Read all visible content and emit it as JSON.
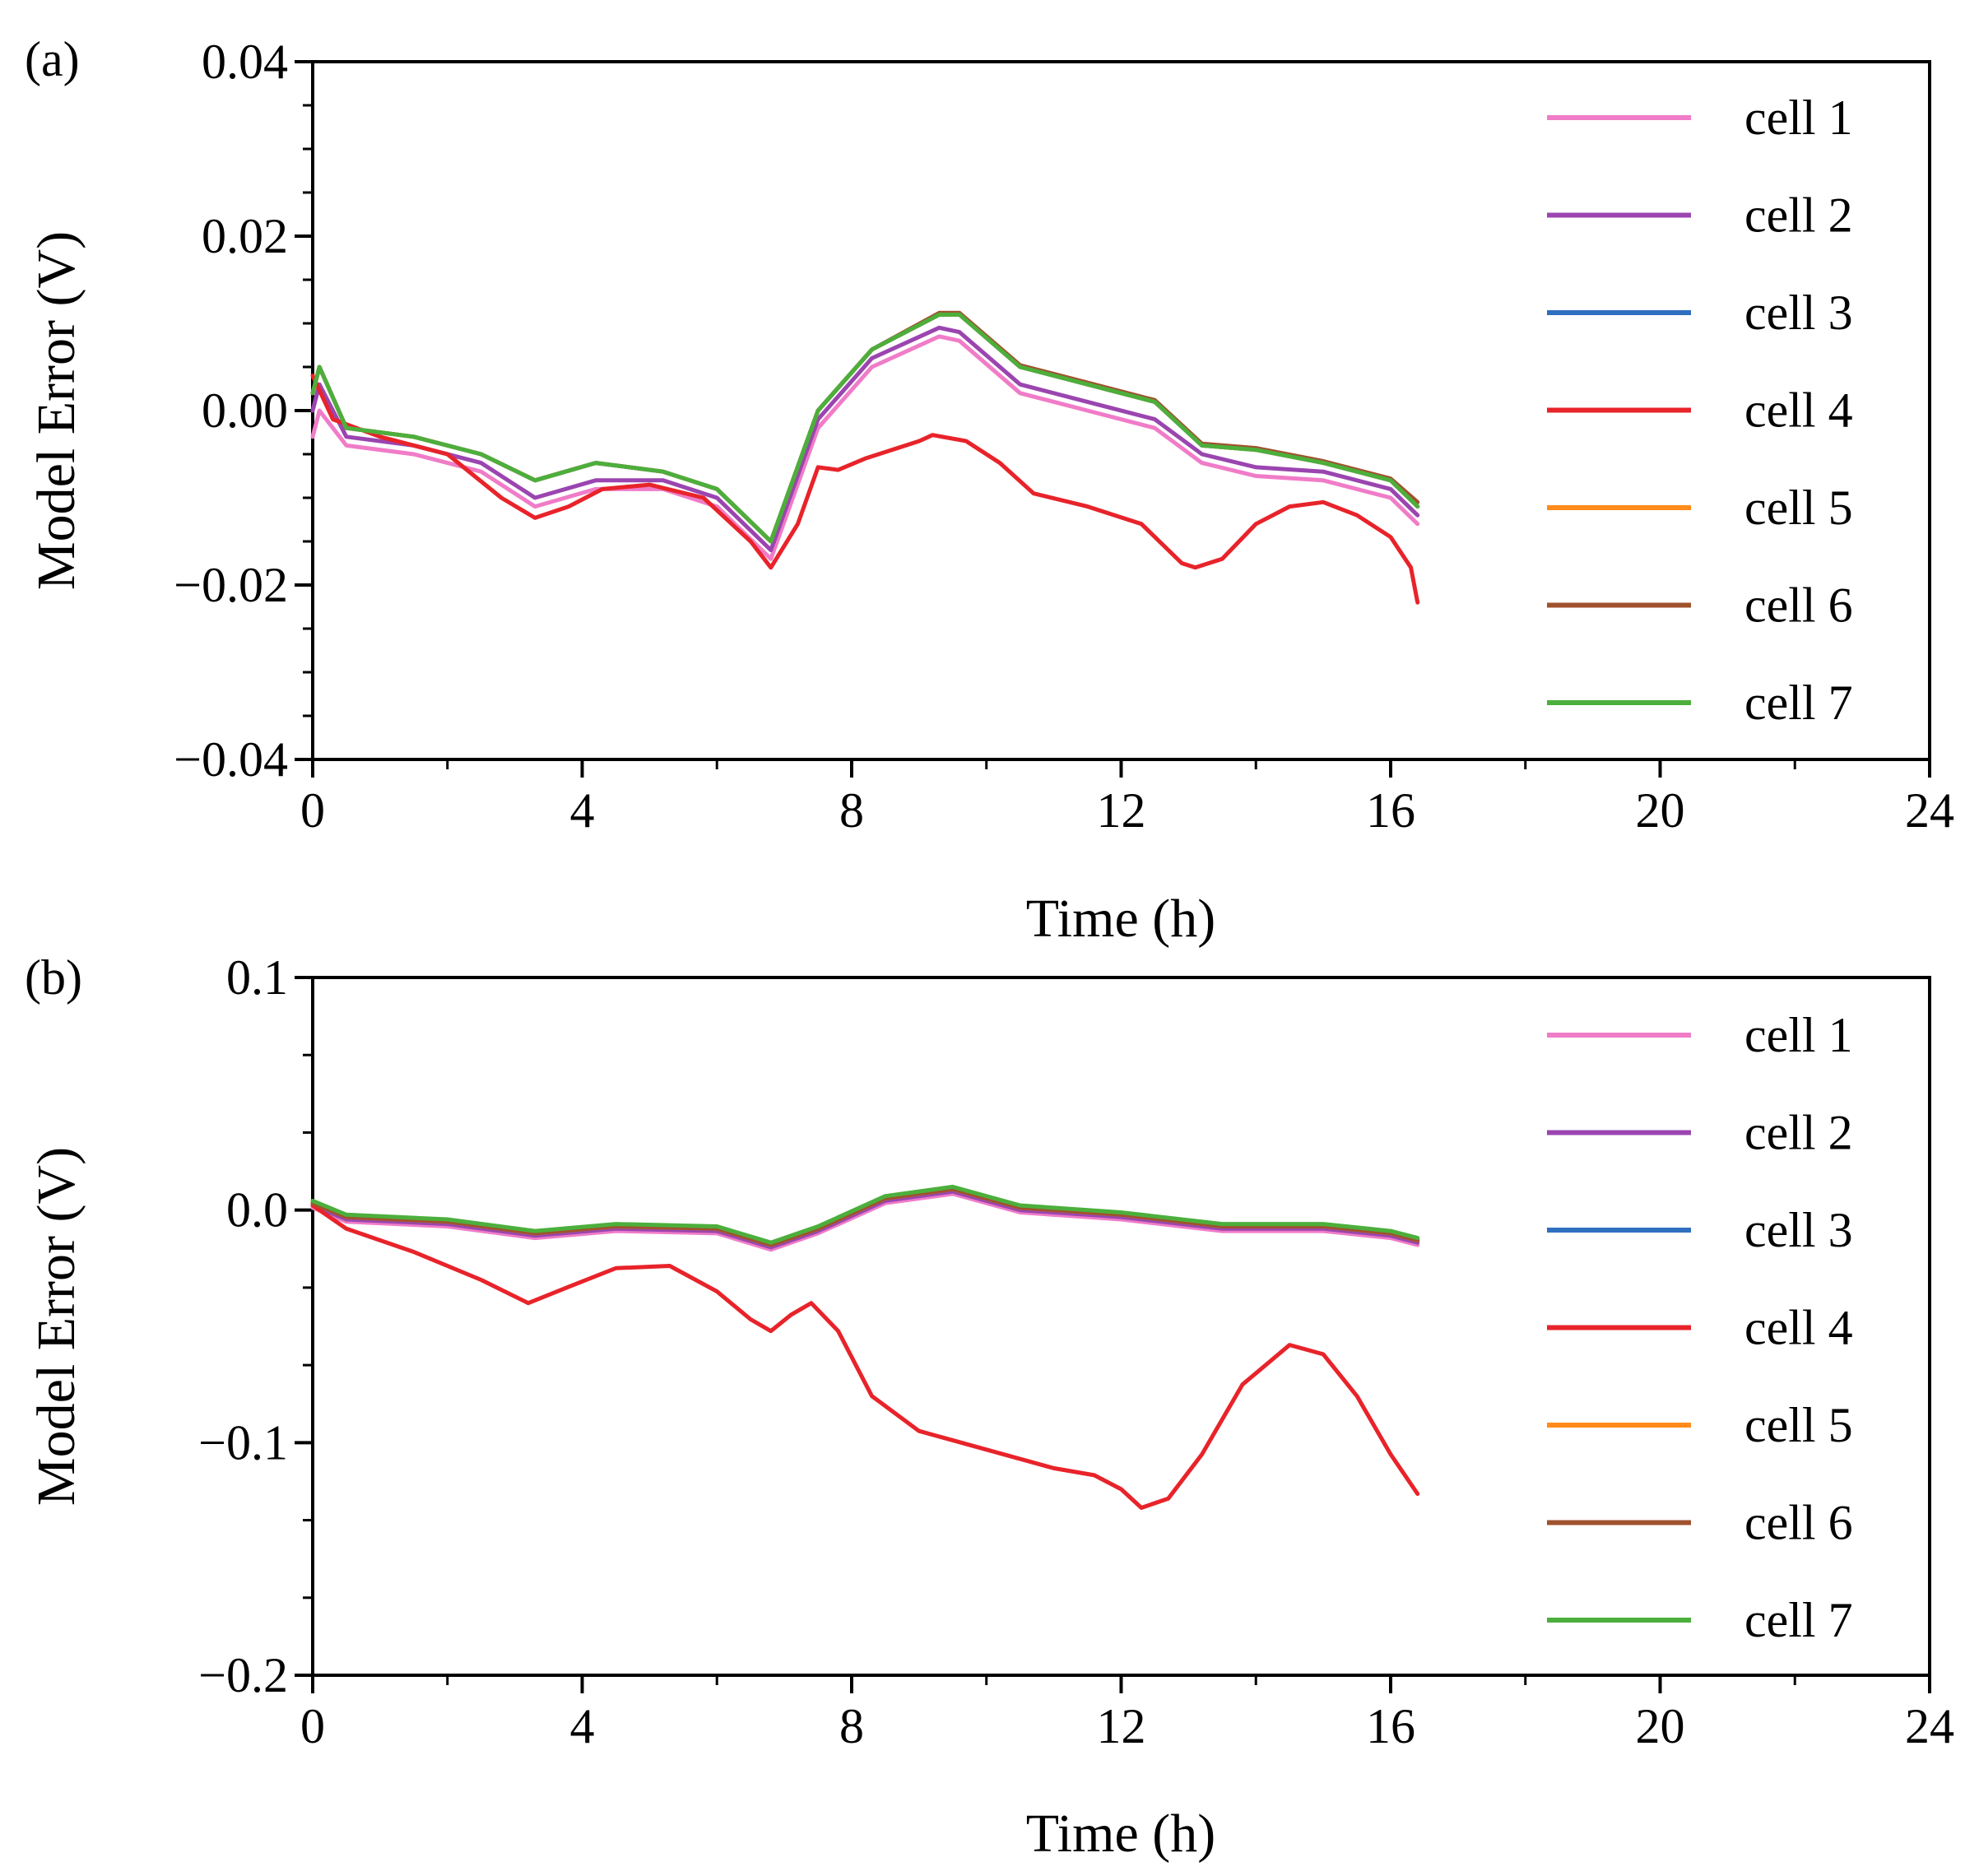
{
  "chart_data": [
    {
      "panel": "(a)",
      "type": "line",
      "xlabel": "Time (h)",
      "ylabel": "Model Error (V)",
      "xlim": [
        0,
        24
      ],
      "ylim": [
        -0.04,
        0.04
      ],
      "xticks": [
        0,
        4,
        8,
        12,
        16,
        20,
        24
      ],
      "xtick_labels": [
        "0",
        "4",
        "8",
        "12",
        "16",
        "20",
        "24"
      ],
      "yticks": [
        -0.04,
        -0.02,
        0.0,
        0.02,
        0.04
      ],
      "ytick_labels": [
        "−0.04",
        "−0.02",
        "0.00",
        "0.02",
        "0.04"
      ],
      "legend_position": "top-right",
      "series": [
        {
          "name": "cell 1",
          "color": "#f07cc8",
          "x": [
            0,
            0.1,
            0.5,
            1.5,
            2.5,
            3.3,
            4.2,
            5.2,
            6.0,
            6.8,
            7.5,
            8.3,
            9.3,
            9.6,
            10.5,
            11.5,
            12.5,
            13.2,
            14.0,
            15.0,
            16.0,
            16.4
          ],
          "y": [
            -0.003,
            0.0,
            -0.004,
            -0.005,
            -0.007,
            -0.011,
            -0.009,
            -0.009,
            -0.011,
            -0.017,
            -0.002,
            0.005,
            0.0085,
            0.008,
            0.002,
            0.0,
            -0.002,
            -0.006,
            -0.0075,
            -0.008,
            -0.01,
            -0.013
          ]
        },
        {
          "name": "cell 2",
          "color": "#9b45b0",
          "x": [
            0,
            0.1,
            0.5,
            1.5,
            2.5,
            3.3,
            4.2,
            5.2,
            6.0,
            6.8,
            7.5,
            8.3,
            9.3,
            9.6,
            10.5,
            11.5,
            12.5,
            13.2,
            14.0,
            15.0,
            16.0,
            16.4
          ],
          "y": [
            0.0,
            0.003,
            -0.003,
            -0.004,
            -0.006,
            -0.01,
            -0.008,
            -0.008,
            -0.01,
            -0.016,
            -0.001,
            0.006,
            0.0095,
            0.009,
            0.003,
            0.001,
            -0.001,
            -0.005,
            -0.0065,
            -0.007,
            -0.009,
            -0.012
          ]
        },
        {
          "name": "cell 3",
          "color": "#2f6fbf",
          "x": [
            0,
            0.1,
            0.5,
            1.5,
            2.5,
            3.3,
            4.2,
            5.2,
            6.0,
            6.8,
            7.5,
            8.3,
            9.3,
            9.6,
            10.5,
            11.5,
            12.5,
            13.2,
            14.0,
            15.0,
            16.0,
            16.4
          ],
          "y": [
            0.002,
            0.005,
            -0.002,
            -0.003,
            -0.005,
            -0.008,
            -0.006,
            -0.007,
            -0.009,
            -0.015,
            0.0,
            0.007,
            0.011,
            0.011,
            0.005,
            0.003,
            0.001,
            -0.004,
            -0.0045,
            -0.006,
            -0.008,
            -0.011
          ]
        },
        {
          "name": "cell 4",
          "color": "#e8232a",
          "x": [
            0,
            0.3,
            1.0,
            2.0,
            2.8,
            3.3,
            3.8,
            4.3,
            5.0,
            5.8,
            6.5,
            6.8,
            7.2,
            7.5,
            7.8,
            8.2,
            9.0,
            9.2,
            9.7,
            10.2,
            10.7,
            11.5,
            12.3,
            12.9,
            13.1,
            13.5,
            14.0,
            14.5,
            15.0,
            15.5,
            16.0,
            16.3,
            16.4
          ],
          "y": [
            0.004,
            -0.001,
            -0.003,
            -0.005,
            -0.01,
            -0.0123,
            -0.011,
            -0.009,
            -0.0085,
            -0.01,
            -0.015,
            -0.018,
            -0.013,
            -0.0065,
            -0.0068,
            -0.0055,
            -0.0035,
            -0.0028,
            -0.0035,
            -0.006,
            -0.0095,
            -0.011,
            -0.013,
            -0.0175,
            -0.018,
            -0.017,
            -0.013,
            -0.011,
            -0.0105,
            -0.012,
            -0.0145,
            -0.018,
            -0.022
          ]
        },
        {
          "name": "cell 5",
          "color": "#ff8c1a",
          "x": [
            0,
            0.1,
            0.5,
            1.5,
            2.5,
            3.3,
            4.2,
            5.2,
            6.0,
            6.8,
            7.5,
            8.3,
            9.3,
            9.6,
            10.5,
            11.5,
            12.5,
            13.2,
            14.0,
            15.0,
            16.0,
            16.4
          ],
          "y": [
            0.002,
            0.005,
            -0.002,
            -0.003,
            -0.005,
            -0.008,
            -0.006,
            -0.007,
            -0.009,
            -0.015,
            0.0,
            0.007,
            0.011,
            0.011,
            0.005,
            0.003,
            0.001,
            -0.004,
            -0.0045,
            -0.006,
            -0.008,
            -0.011
          ]
        },
        {
          "name": "cell 6",
          "color": "#a0522d",
          "x": [
            0,
            0.1,
            0.5,
            1.5,
            2.5,
            3.3,
            4.2,
            5.2,
            6.0,
            6.8,
            7.5,
            8.3,
            9.3,
            9.6,
            10.5,
            11.5,
            12.5,
            13.2,
            14.0,
            15.0,
            16.0,
            16.4
          ],
          "y": [
            0.002,
            0.005,
            -0.002,
            -0.003,
            -0.005,
            -0.008,
            -0.006,
            -0.007,
            -0.009,
            -0.015,
            0.0,
            0.007,
            0.0112,
            0.0112,
            0.0052,
            0.0032,
            0.0012,
            -0.0038,
            -0.0043,
            -0.0058,
            -0.0078,
            -0.0105
          ]
        },
        {
          "name": "cell 7",
          "color": "#4caf3c",
          "x": [
            0,
            0.1,
            0.5,
            1.5,
            2.5,
            3.3,
            4.2,
            5.2,
            6.0,
            6.8,
            7.5,
            8.3,
            9.3,
            9.6,
            10.5,
            11.5,
            12.5,
            13.2,
            14.0,
            15.0,
            16.0,
            16.4
          ],
          "y": [
            0.002,
            0.005,
            -0.002,
            -0.003,
            -0.005,
            -0.008,
            -0.006,
            -0.007,
            -0.009,
            -0.015,
            0.0,
            0.007,
            0.011,
            0.011,
            0.005,
            0.003,
            0.001,
            -0.004,
            -0.0045,
            -0.006,
            -0.008,
            -0.011
          ]
        }
      ]
    },
    {
      "panel": "(b)",
      "type": "line",
      "xlabel": "Time (h)",
      "ylabel": "Model Error (V)",
      "xlim": [
        0,
        24
      ],
      "ylim": [
        -0.2,
        0.1
      ],
      "xticks": [
        0,
        4,
        8,
        12,
        16,
        20,
        24
      ],
      "xtick_labels": [
        "0",
        "4",
        "8",
        "12",
        "16",
        "20",
        "24"
      ],
      "yticks": [
        -0.2,
        -0.1,
        0.0,
        0.1
      ],
      "ytick_labels": [
        "−0.2",
        "−0.1",
        "0.0",
        "0.1"
      ],
      "legend_position": "top-right",
      "series": [
        {
          "name": "cell 1",
          "color": "#f07cc8",
          "x": [
            0,
            0.5,
            2.0,
            3.3,
            4.5,
            6.0,
            6.8,
            7.5,
            8.5,
            9.5,
            10.5,
            12.0,
            13.5,
            15.0,
            16.0,
            16.4
          ],
          "y": [
            0.001,
            -0.005,
            -0.007,
            -0.012,
            -0.009,
            -0.01,
            -0.017,
            -0.01,
            0.003,
            0.007,
            -0.001,
            -0.004,
            -0.009,
            -0.009,
            -0.012,
            -0.015
          ]
        },
        {
          "name": "cell 2",
          "color": "#9b45b0",
          "x": [
            0,
            0.5,
            2.0,
            3.3,
            4.5,
            6.0,
            6.8,
            7.5,
            8.5,
            9.5,
            10.5,
            12.0,
            13.5,
            15.0,
            16.0,
            16.4
          ],
          "y": [
            0.002,
            -0.004,
            -0.006,
            -0.011,
            -0.008,
            -0.009,
            -0.016,
            -0.009,
            0.004,
            0.008,
            0.0,
            -0.003,
            -0.008,
            -0.008,
            -0.011,
            -0.014
          ]
        },
        {
          "name": "cell 3",
          "color": "#2f6fbf",
          "x": [
            0,
            0.5,
            2.0,
            3.3,
            4.5,
            6.0,
            6.8,
            7.5,
            8.5,
            9.5,
            10.5,
            12.0,
            13.5,
            15.0,
            16.0,
            16.4
          ],
          "y": [
            0.003,
            -0.003,
            -0.005,
            -0.01,
            -0.007,
            -0.008,
            -0.015,
            -0.008,
            0.005,
            0.009,
            0.001,
            -0.002,
            -0.007,
            -0.007,
            -0.01,
            -0.013
          ]
        },
        {
          "name": "cell 4",
          "color": "#e8232a",
          "x": [
            0,
            0.5,
            1.5,
            2.5,
            3.2,
            3.8,
            4.5,
            5.3,
            6.0,
            6.5,
            6.8,
            7.1,
            7.4,
            7.8,
            8.3,
            9.0,
            10.0,
            11.0,
            11.6,
            12.0,
            12.3,
            12.7,
            13.2,
            13.8,
            14.5,
            15.0,
            15.5,
            16.0,
            16.4
          ],
          "y": [
            0.002,
            -0.008,
            -0.018,
            -0.03,
            -0.04,
            -0.033,
            -0.025,
            -0.024,
            -0.035,
            -0.047,
            -0.052,
            -0.045,
            -0.04,
            -0.052,
            -0.08,
            -0.095,
            -0.103,
            -0.111,
            -0.114,
            -0.12,
            -0.128,
            -0.124,
            -0.105,
            -0.075,
            -0.058,
            -0.062,
            -0.08,
            -0.105,
            -0.122
          ]
        },
        {
          "name": "cell 5",
          "color": "#ff8c1a",
          "x": [
            0,
            0.5,
            2.0,
            3.3,
            4.5,
            6.0,
            6.8,
            7.5,
            8.5,
            9.5,
            10.5,
            12.0,
            13.5,
            15.0,
            16.0,
            16.4
          ],
          "y": [
            0.003,
            -0.003,
            -0.005,
            -0.01,
            -0.007,
            -0.008,
            -0.015,
            -0.008,
            0.005,
            0.009,
            0.001,
            -0.002,
            -0.007,
            -0.007,
            -0.01,
            -0.013
          ]
        },
        {
          "name": "cell 6",
          "color": "#a0522d",
          "x": [
            0,
            0.5,
            2.0,
            3.3,
            4.5,
            6.0,
            6.8,
            7.5,
            8.5,
            9.5,
            10.5,
            12.0,
            13.5,
            15.0,
            16.0,
            16.4
          ],
          "y": [
            0.003,
            -0.003,
            -0.005,
            -0.01,
            -0.007,
            -0.008,
            -0.015,
            -0.008,
            0.005,
            0.009,
            0.001,
            -0.002,
            -0.007,
            -0.007,
            -0.01,
            -0.013
          ]
        },
        {
          "name": "cell 7",
          "color": "#4caf3c",
          "x": [
            0,
            0.5,
            2.0,
            3.3,
            4.5,
            6.0,
            6.8,
            7.5,
            8.5,
            9.5,
            10.5,
            12.0,
            13.5,
            15.0,
            16.0,
            16.4
          ],
          "y": [
            0.004,
            -0.002,
            -0.004,
            -0.009,
            -0.006,
            -0.007,
            -0.014,
            -0.007,
            0.006,
            0.01,
            0.002,
            -0.001,
            -0.006,
            -0.006,
            -0.009,
            -0.012
          ]
        }
      ]
    }
  ]
}
